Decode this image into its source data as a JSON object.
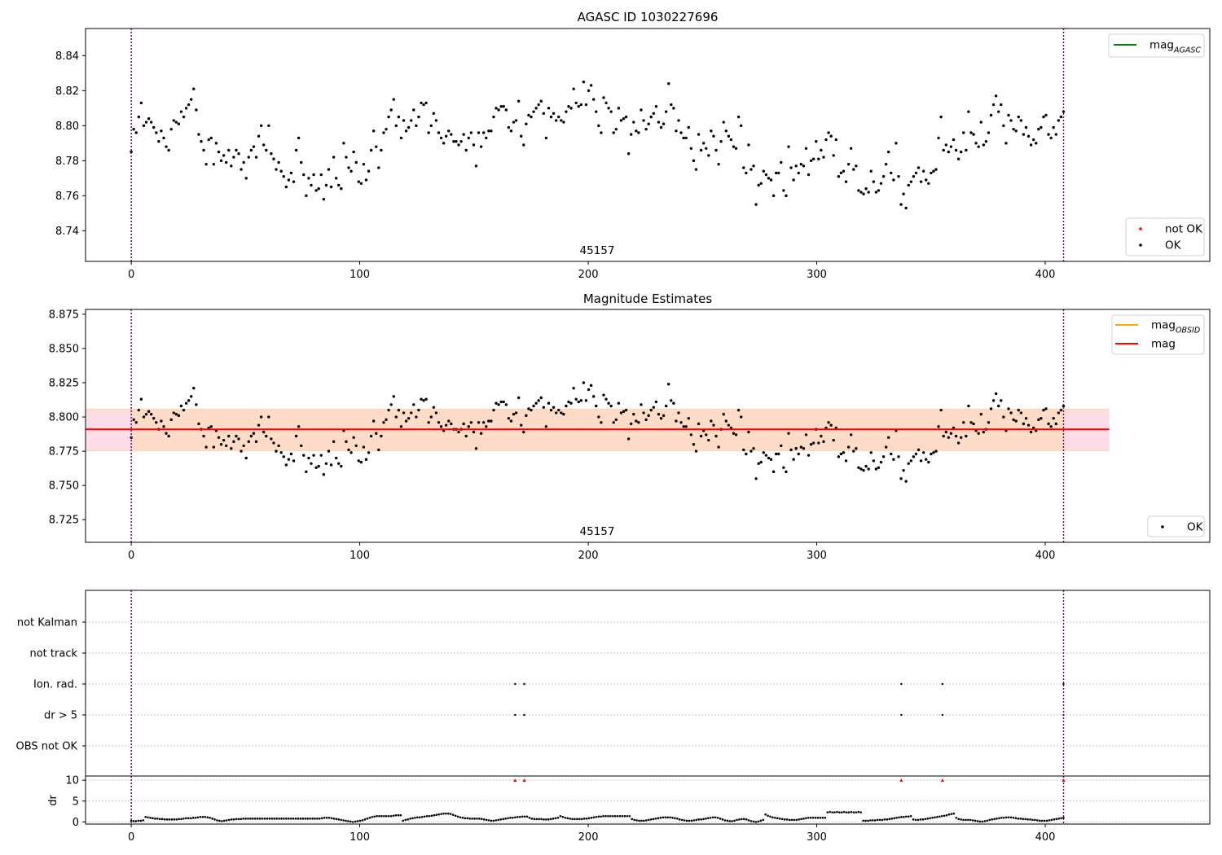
{
  "chart_data": [
    {
      "type": "scatter",
      "title": "AGASC ID 1030227696",
      "annotation": "45157",
      "xlim": [
        -20,
        472
      ],
      "ylim": [
        8.7225,
        8.8555
      ],
      "x_ticks": [
        0,
        100,
        200,
        300,
        400
      ],
      "y_ticks": [
        8.74,
        8.76,
        8.78,
        8.8,
        8.82,
        8.84
      ],
      "vlines": [
        0,
        408
      ],
      "legend_top": {
        "position": "upper right",
        "entries": [
          {
            "label": "mag",
            "sub": "AGASC",
            "color": "#008000",
            "marker": "line"
          }
        ]
      },
      "legend_bottom": {
        "position": "lower right",
        "entries": [
          {
            "label": "not OK",
            "color": "#ff0000",
            "marker": "dot"
          },
          {
            "label": "OK",
            "color": "#000000",
            "marker": "dot"
          }
        ]
      },
      "series": [
        {
          "name": "OK",
          "color": "#000000",
          "x_start": 0,
          "x_end": 408,
          "y": [
            8.785,
            8.798,
            8.796,
            8.805,
            8.813,
            8.8,
            8.802,
            8.804,
            8.802,
            8.799,
            8.796,
            8.791,
            8.797,
            8.793,
            8.788,
            8.786,
            8.798,
            8.803,
            8.802,
            8.801,
            8.808,
            8.805,
            8.81,
            8.812,
            8.815,
            8.821,
            8.809,
            8.795,
            8.791,
            8.786,
            8.778,
            8.792,
            8.793,
            8.778,
            8.79,
            8.785,
            8.78,
            8.783,
            8.779,
            8.786,
            8.777,
            8.782,
            8.786,
            8.784,
            8.775,
            8.779,
            8.77,
            8.782,
            8.786,
            8.788,
            8.782,
            8.794,
            8.8,
            8.789,
            8.786,
            8.8,
            8.784,
            8.781,
            8.775,
            8.779,
            8.774,
            8.771,
            8.765,
            8.769,
            8.773,
            8.768,
            8.786,
            8.793,
            8.779,
            8.772,
            8.76,
            8.77,
            8.766,
            8.772,
            8.763,
            8.764,
            8.772,
            8.758,
            8.766,
            8.775,
            8.765,
            8.782,
            8.77,
            8.766,
            8.764,
            8.79,
            8.782,
            8.776,
            8.774,
            8.785,
            8.779,
            8.768,
            8.767,
            8.778,
            8.769,
            8.774,
            8.786,
            8.797,
            8.788,
            8.776,
            8.786,
            8.796,
            8.798,
            8.805,
            8.809,
            8.815,
            8.8,
            8.805,
            8.793,
            8.803,
            8.797,
            8.799,
            8.803,
            8.809,
            8.8,
            8.805,
            8.813,
            8.812,
            8.813,
            8.796,
            8.8,
            8.807,
            8.803,
            8.796,
            8.793,
            8.79,
            8.794,
            8.797,
            8.795,
            8.791,
            8.791,
            8.789,
            8.791,
            8.795,
            8.786,
            8.793,
            8.796,
            8.789,
            8.777,
            8.796,
            8.788,
            8.796,
            8.793,
            8.797,
            8.797,
            8.805,
            8.81,
            8.809,
            8.811,
            8.811,
            8.809,
            8.799,
            8.797,
            8.802,
            8.803,
            8.814,
            8.794,
            8.789,
            8.801,
            8.806,
            8.805,
            8.808,
            8.81,
            8.812,
            8.814,
            8.807,
            8.793,
            8.81,
            8.805,
            8.807,
            8.803,
            8.805,
            8.803,
            8.802,
            8.808,
            8.811,
            8.81,
            8.821,
            8.813,
            8.811,
            8.812,
            8.825,
            8.812,
            8.82,
            8.823,
            8.815,
            8.808,
            8.8,
            8.796,
            8.816,
            8.813,
            8.81,
            8.808,
            8.796,
            8.798,
            8.81,
            8.803,
            8.804,
            8.805,
            8.784,
            8.795,
            8.802,
            8.797,
            8.796,
            8.809,
            8.803,
            8.798,
            8.801,
            8.805,
            8.807,
            8.811,
            8.802,
            8.799,
            8.801,
            8.808,
            8.824,
            8.812,
            8.81,
            8.797,
            8.803,
            8.796,
            8.793,
            8.793,
            8.799,
            8.787,
            8.78,
            8.775,
            8.795,
            8.786,
            8.79,
            8.787,
            8.783,
            8.797,
            8.794,
            8.786,
            8.778,
            8.791,
            8.802,
            8.797,
            8.794,
            8.792,
            8.788,
            8.787,
            8.805,
            8.8,
            8.776,
            8.773,
            8.789,
            8.775,
            8.777,
            8.755,
            8.766,
            8.767,
            8.774,
            8.772,
            8.77,
            8.769,
            8.76,
            8.773,
            8.773,
            8.779,
            8.763,
            8.76,
            8.788,
            8.776,
            8.769,
            8.777,
            8.773,
            8.778,
            8.777,
            8.787,
            8.772,
            8.78,
            8.781,
            8.791,
            8.781,
            8.786,
            8.782,
            8.792,
            8.796,
            8.794,
            8.783,
            8.792,
            8.771,
            8.773,
            8.774,
            8.768,
            8.778,
            8.787,
            8.775,
            8.777,
            8.763,
            8.762,
            8.761,
            8.764,
            8.762,
            8.774,
            8.768,
            8.762,
            8.763,
            8.767,
            8.771,
            8.778,
            8.785,
            8.773,
            8.769,
            8.79,
            8.771,
            8.755,
            8.761,
            8.753,
            8.766,
            8.768,
            8.771,
            8.773,
            8.776,
            8.768,
            8.774,
            8.769,
            8.767,
            8.773,
            8.774,
            8.775,
            8.793,
            8.805,
            8.786,
            8.789,
            8.785,
            8.788,
            8.792,
            8.786,
            8.781,
            8.785,
            8.796,
            8.786,
            8.808,
            8.796,
            8.795,
            8.79,
            8.788,
            8.802,
            8.789,
            8.791,
            8.796,
            8.806,
            8.812,
            8.817,
            8.808,
            8.812,
            8.8,
            8.79,
            8.806,
            8.803,
            8.798,
            8.797,
            8.805,
            8.803,
            8.795,
            8.799,
            8.794,
            8.789,
            8.792,
            8.79,
            8.798,
            8.799,
            8.805,
            8.806,
            8.795,
            8.793,
            8.799,
            8.795,
            8.803,
            8.805,
            8.808
          ]
        }
      ]
    },
    {
      "type": "scatter",
      "title": "Magnitude Estimates",
      "annotation": "45157",
      "xlim": [
        -20,
        472
      ],
      "ylim": [
        8.7085,
        8.8785
      ],
      "x_ticks": [
        0,
        100,
        200,
        300,
        400
      ],
      "y_ticks": [
        8.725,
        8.75,
        8.775,
        8.8,
        8.825,
        8.85,
        8.875
      ],
      "vlines": [
        0,
        408
      ],
      "mag": 8.791,
      "band_outer": {
        "x": [
          -20,
          428
        ],
        "y": [
          8.7755,
          8.8055
        ],
        "color": "#ffdde6"
      },
      "band_inner": {
        "x": [
          0,
          408
        ],
        "y": [
          8.7755,
          8.8055
        ],
        "color": "#ffdcc8"
      },
      "legend_top": {
        "position": "upper right",
        "entries": [
          {
            "label": "mag",
            "sub": "OBSID",
            "color": "#ffa500",
            "marker": "line"
          },
          {
            "label": "mag",
            "color": "#ff0000",
            "marker": "line"
          }
        ]
      },
      "legend_bottom": {
        "position": "lower right",
        "entries": [
          {
            "label": "OK",
            "color": "#000000",
            "marker": "dot"
          }
        ]
      },
      "series_ref": "same points as first panel"
    },
    {
      "type": "scatter",
      "title": "",
      "xlim": [
        -20,
        472
      ],
      "x_ticks": [
        0,
        100,
        200,
        300,
        400
      ],
      "vlines": [
        0,
        408
      ],
      "flag_rows": [
        "not Kalman",
        "not track",
        "Ion. rad.",
        "dr > 5",
        "OBS not OK"
      ],
      "flags": {
        "Ion. rad.": [
          168,
          172,
          337,
          355,
          408
        ],
        "dr > 5": [
          168,
          172,
          337,
          355,
          408
        ]
      },
      "dr": {
        "ylabel": "dr",
        "y_ticks": [
          0,
          5,
          10
        ],
        "ylim": [
          -0.5,
          11
        ],
        "outliers_marker": "red triangle",
        "outliers_x": [
          168,
          172,
          337,
          355,
          408
        ],
        "outliers_value": 10,
        "values": [
          0.3,
          0.2,
          0.2,
          0.3,
          0.3,
          0.4,
          1.2,
          1.1,
          1.0,
          0.9,
          0.8,
          0.8,
          0.7,
          0.7,
          0.6,
          0.6,
          0.6,
          0.6,
          0.6,
          0.6,
          0.7,
          0.7,
          0.8,
          0.9,
          0.9,
          0.9,
          1.0,
          1.0,
          1.1,
          1.2,
          1.2,
          1.2,
          1.1,
          1.0,
          0.8,
          0.6,
          0.4,
          0.3,
          0.2,
          0.3,
          0.4,
          0.5,
          0.6,
          0.6,
          0.7,
          0.7,
          0.7,
          0.8,
          0.8,
          0.8,
          0.8,
          0.8,
          0.8,
          0.8,
          0.8,
          0.8,
          0.8,
          0.8,
          0.8,
          0.8,
          0.8,
          0.8,
          0.8,
          0.8,
          0.8,
          0.8,
          0.8,
          0.8,
          0.8,
          0.8,
          0.8,
          0.8,
          0.8,
          0.8,
          0.8,
          0.8,
          0.8,
          0.8,
          0.8,
          0.8,
          0.9,
          1.0,
          1.0,
          1.0,
          0.9,
          0.8,
          0.7,
          0.6,
          0.5,
          0.4,
          0.3,
          0.2,
          0.1,
          0.0,
          0.1,
          0.2,
          0.3,
          0.4,
          0.6,
          0.8,
          1.0,
          1.2,
          1.3,
          1.4,
          1.4,
          1.4,
          1.4,
          1.4,
          1.4,
          1.4,
          1.5,
          1.6,
          1.6,
          1.6,
          0.3,
          0.5,
          0.6,
          0.8,
          0.9,
          1.0,
          1.1,
          1.1,
          1.2,
          1.3,
          1.4,
          1.4,
          1.5,
          1.6,
          1.7,
          1.8,
          1.9,
          2.0,
          2.0,
          2.0,
          1.9,
          1.7,
          1.5,
          1.3,
          1.1,
          1.0,
          0.9,
          0.9,
          0.8,
          0.8,
          0.8,
          0.8,
          0.8,
          0.7,
          0.6,
          0.5,
          0.4,
          0.3,
          0.3,
          0.4,
          0.5,
          0.6,
          0.7,
          0.8,
          0.9,
          1.0,
          1.0,
          1.1,
          1.2,
          1.2,
          1.3,
          1.3,
          1.3,
          1.0,
          0.8,
          0.7,
          0.7,
          0.7,
          0.7,
          0.6,
          0.6,
          0.6,
          0.7,
          0.8,
          0.9,
          1.0,
          1.4,
          1.2,
          1.0,
          0.9,
          0.8,
          0.7,
          0.7,
          0.7,
          0.7,
          0.7,
          0.8,
          0.8,
          0.9,
          1.0,
          1.1,
          1.2,
          1.3,
          1.3,
          1.4,
          1.4,
          1.4,
          1.4,
          1.4,
          1.4,
          1.4,
          1.4,
          1.4,
          1.4,
          1.4,
          1.4,
          0.7,
          0.5,
          0.4,
          0.3,
          0.3,
          0.3,
          0.4,
          0.5,
          0.6,
          0.7,
          0.8,
          0.9,
          1.0,
          1.1,
          1.1,
          1.1,
          1.1,
          1.0,
          0.9,
          0.8,
          0.6,
          0.5,
          0.4,
          0.3,
          0.3,
          0.3,
          0.4,
          0.5,
          0.6,
          0.6,
          0.7,
          0.8,
          0.9,
          1.0,
          1.1,
          1.1,
          1.0,
          0.8,
          0.6,
          0.4,
          0.3,
          0.2,
          0.2,
          0.3,
          0.5,
          0.6,
          0.7,
          0.7,
          0.6,
          0.4,
          0.2,
          0.1,
          0.0,
          0.1,
          0.3,
          0.5,
          1.8,
          1.5,
          1.3,
          1.1,
          1.0,
          0.9,
          0.8,
          0.7,
          0.6,
          0.6,
          0.5,
          0.5,
          0.5,
          0.5,
          0.6,
          0.7,
          0.8,
          0.9,
          1.0,
          1.0,
          1.0,
          1.0,
          1.0,
          1.0,
          1.0,
          1.0,
          2.3,
          2.4,
          2.3,
          2.3,
          2.4,
          2.3,
          2.3,
          2.4,
          2.3,
          2.3,
          2.4,
          2.3,
          2.3,
          2.4,
          2.3,
          0.3,
          0.3,
          0.3,
          0.4,
          0.4,
          0.4,
          0.5,
          0.5,
          0.5,
          0.6,
          0.6,
          0.7,
          0.8,
          0.9,
          1.0,
          1.1,
          1.2,
          1.2,
          1.3,
          1.3,
          1.4,
          0.6,
          0.5,
          0.5,
          0.6,
          0.6,
          0.7,
          0.8,
          0.9,
          1.0,
          1.1,
          1.2,
          1.3,
          1.4,
          1.5,
          1.6,
          1.8,
          1.9,
          2.0,
          1.0,
          0.7,
          0.6,
          0.5,
          0.5,
          0.5,
          0.5,
          0.4,
          0.3,
          0.2,
          0.1,
          0.1,
          0.2,
          0.3,
          0.5,
          0.6,
          0.7,
          0.8,
          0.9,
          1.0,
          1.0,
          1.1,
          1.1,
          1.1,
          1.0,
          0.9,
          0.8,
          0.8,
          0.7,
          0.7,
          0.6,
          0.6,
          0.5,
          0.5,
          0.4,
          0.3,
          0.3,
          0.3,
          0.3,
          0.4,
          0.5,
          0.6,
          0.7,
          0.8,
          0.9,
          1.0
        ]
      }
    }
  ]
}
